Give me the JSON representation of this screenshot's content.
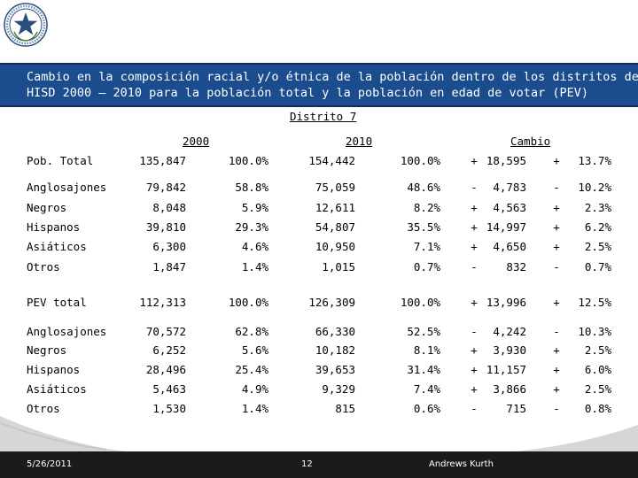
{
  "colors": {
    "title_bg": "#1a4c8e",
    "footer_bg": "#1b1b1b",
    "swoosh": "#d6d6d6"
  },
  "logo": {
    "icon": "texas-star-seal-icon"
  },
  "title": {
    "line1": "Cambio en la composición racial y/o étnica de la población dentro de los distritos del",
    "line2": "HISD 2000 – 2010 para la población total y la población en edad de votar (PEV)"
  },
  "table": {
    "district_label": "Distrito 7",
    "headers": {
      "y2000": "2000",
      "y2010": "2010",
      "cambio": "Cambio"
    },
    "pob_rows": [
      {
        "label": "Pob. Total",
        "n2000": "135,847",
        "p2000": "100.0%",
        "n2010": "154,442",
        "p2010": "100.0%",
        "sign": "+",
        "chg": "18,595",
        "psign": "+",
        "pchg": "13.7%"
      },
      {
        "label": "Anglosajones",
        "n2000": "79,842",
        "p2000": "58.8%",
        "n2010": "75,059",
        "p2010": "48.6%",
        "sign": "-",
        "chg": "4,783",
        "psign": "-",
        "pchg": "10.2%"
      },
      {
        "label": "Negros",
        "n2000": "8,048",
        "p2000": "5.9%",
        "n2010": "12,611",
        "p2010": "8.2%",
        "sign": "+",
        "chg": "4,563",
        "psign": "+",
        "pchg": "2.3%"
      },
      {
        "label": "Hispanos",
        "n2000": "39,810",
        "p2000": "29.3%",
        "n2010": "54,807",
        "p2010": "35.5%",
        "sign": "+",
        "chg": "14,997",
        "psign": "+",
        "pchg": "6.2%"
      },
      {
        "label": "Asiáticos",
        "n2000": "6,300",
        "p2000": "4.6%",
        "n2010": "10,950",
        "p2010": "7.1%",
        "sign": "+",
        "chg": "4,650",
        "psign": "+",
        "pchg": "2.5%"
      },
      {
        "label": "Otros",
        "n2000": "1,847",
        "p2000": "1.4%",
        "n2010": "1,015",
        "p2010": "0.7%",
        "sign": "-",
        "chg": "832",
        "psign": "-",
        "pchg": "0.7%"
      }
    ],
    "pev_rows": [
      {
        "label": "PEV total",
        "n2000": "112,313",
        "p2000": "100.0%",
        "n2010": "126,309",
        "p2010": "100.0%",
        "sign": "+",
        "chg": "13,996",
        "psign": "+",
        "pchg": "12.5%"
      },
      {
        "label": "Anglosajones",
        "n2000": "70,572",
        "p2000": "62.8%",
        "n2010": "66,330",
        "p2010": "52.5%",
        "sign": "-",
        "chg": "4,242",
        "psign": "-",
        "pchg": "10.3%"
      },
      {
        "label": "Negros",
        "n2000": "6,252",
        "p2000": "5.6%",
        "n2010": "10,182",
        "p2010": "8.1%",
        "sign": "+",
        "chg": "3,930",
        "psign": "+",
        "pchg": "2.5%"
      },
      {
        "label": "Hispanos",
        "n2000": "28,496",
        "p2000": "25.4%",
        "n2010": "39,653",
        "p2010": "31.4%",
        "sign": "+",
        "chg": "11,157",
        "psign": "+",
        "pchg": "6.0%"
      },
      {
        "label": "Asiáticos",
        "n2000": "5,463",
        "p2000": "4.9%",
        "n2010": "9,329",
        "p2010": "7.4%",
        "sign": "+",
        "chg": "3,866",
        "psign": "+",
        "pchg": "2.5%"
      },
      {
        "label": "Otros",
        "n2000": "1,530",
        "p2000": "1.4%",
        "n2010": "815",
        "p2010": "0.6%",
        "sign": "-",
        "chg": "715",
        "psign": "-",
        "pchg": "0.8%"
      }
    ]
  },
  "footer": {
    "date": "5/26/2011",
    "page": "12",
    "org": "Andrews Kurth"
  }
}
